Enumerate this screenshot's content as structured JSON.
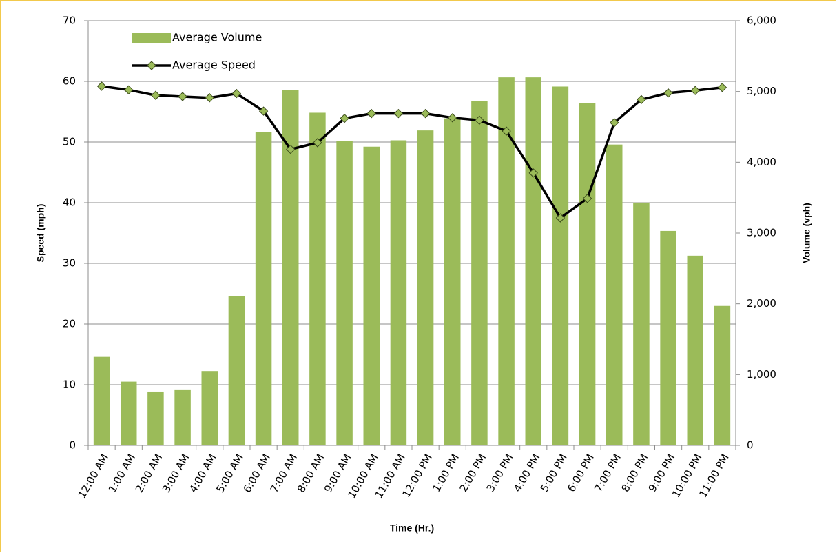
{
  "chart_data": {
    "type": "bar",
    "x_label": "Time (Hr.)",
    "y_label": "Speed (mph)",
    "y2_label": "Volume (vph)",
    "categories": [
      "12:00 AM",
      "1:00 AM",
      "2:00 AM",
      "3:00 AM",
      "4:00 AM",
      "5:00 AM",
      "6:00 AM",
      "7:00 AM",
      "8:00 AM",
      "9:00 AM",
      "10:00 AM",
      "11:00 AM",
      "12:00 PM",
      "1:00 PM",
      "2:00 PM",
      "3:00 PM",
      "4:00 PM",
      "5:00 PM",
      "6:00 PM",
      "7:00 PM",
      "8:00 PM",
      "9:00 PM",
      "10:00 PM",
      "11:00 PM"
    ],
    "series": [
      {
        "name": "Average Volume",
        "type": "bar",
        "axis": "y2",
        "color": "#9bbb59",
        "values": [
          1250,
          900,
          760,
          790,
          1050,
          2110,
          4430,
          5020,
          4700,
          4300,
          4220,
          4310,
          4450,
          4620,
          4870,
          5200,
          5200,
          5070,
          4840,
          4250,
          3430,
          3030,
          2680,
          1970
        ]
      },
      {
        "name": "Average Speed",
        "type": "line",
        "color": "#000000",
        "marker_color": "#9bbb59",
        "values": [
          59.2,
          58.6,
          57.7,
          57.5,
          57.3,
          58.0,
          55.1,
          48.8,
          49.9,
          53.9,
          54.7,
          54.7,
          54.7,
          54.0,
          53.6,
          51.8,
          44.9,
          37.5,
          40.7,
          53.2,
          57.0,
          58.1,
          58.5,
          59.0
        ]
      }
    ],
    "ylim": [
      0,
      70
    ],
    "yticks": [
      0,
      10,
      20,
      30,
      40,
      50,
      60,
      70
    ],
    "y2lim": [
      0,
      6000
    ],
    "y2ticks": [
      0,
      {
        "value": 1000,
        "label": "1,000"
      },
      {
        "value": 2000,
        "label": "2,000"
      },
      {
        "value": 3000,
        "label": "3,000"
      },
      {
        "value": 4000,
        "label": "4,000"
      },
      {
        "value": 5000,
        "label": "5,000"
      },
      {
        "value": 6000,
        "label": "6,000"
      }
    ],
    "grid": true,
    "legend": "upper-left"
  }
}
